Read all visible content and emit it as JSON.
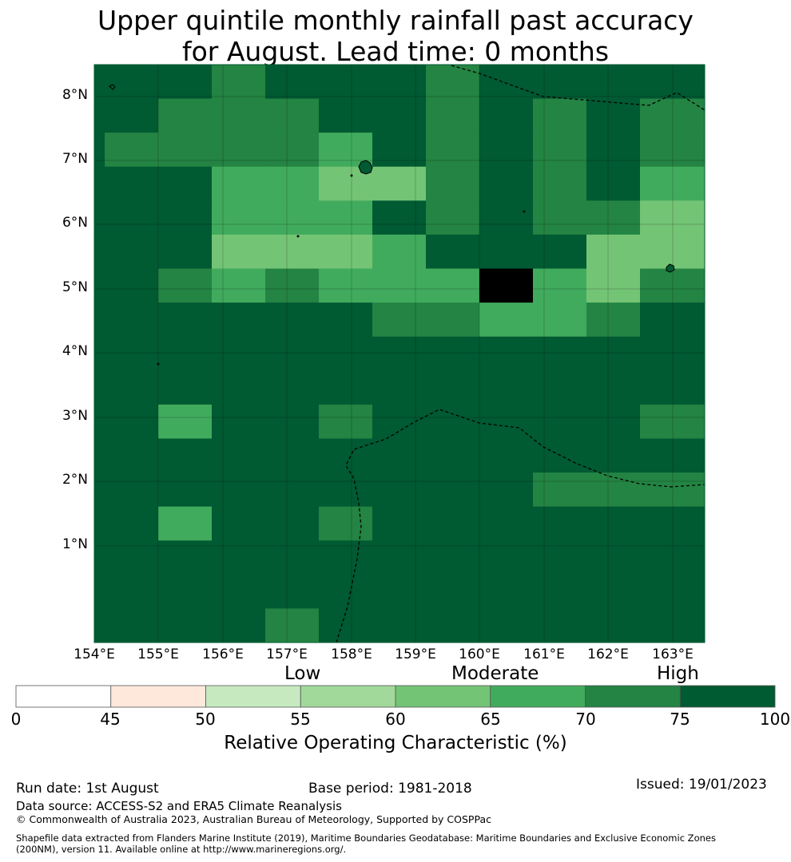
{
  "title": {
    "line1": "Upper quintile monthly rainfall past accuracy",
    "line2": "for August. Lead time: 0 months"
  },
  "map": {
    "lon_labels": [
      "154°E",
      "155°E",
      "156°E",
      "157°E",
      "158°E",
      "159°E",
      "160°E",
      "161°E",
      "162°E",
      "163°E"
    ],
    "lat_labels": [
      "8°N",
      "7°N",
      "6°N",
      "5°N",
      "4°N",
      "3°N",
      "2°N",
      "1°N"
    ],
    "grid_colors": [
      "#005a32",
      "#238443",
      "#41ab5d",
      "#74c476"
    ],
    "grid_rows": [
      "000100010000",
      "001110010101",
      "011112010101",
      "000223310102",
      "000222010113",
      "000333200033",
      "001212224231",
      "000000112210",
      "000000000000",
      "000000000000",
      "002001000001",
      "000000000000",
      "000000000111",
      "002001000000",
      "000000000000",
      "000000000000",
      "000010000000"
    ]
  },
  "legend": {
    "categories": {
      "low": "Low",
      "moderate": "Moderate",
      "high": "High"
    },
    "ticks": [
      "0",
      "45",
      "50",
      "55",
      "60",
      "65",
      "70",
      "75",
      "100"
    ],
    "colors": [
      "#ffffff",
      "#fee8dc",
      "#c7e9c0",
      "#a1d99b",
      "#74c476",
      "#41ab5d",
      "#238443",
      "#005a32"
    ],
    "label": "Relative Operating Characteristic (%)"
  },
  "footer": {
    "run_date": "Run date: 1st August",
    "base_period": "Base period: 1981-2018",
    "issued": "Issued: 19/01/2023",
    "data_source": "Data source: ACCESS-S2 and ERA5 Climate Reanalysis",
    "copyright": "© Commonwealth of Australia 2023, Australian Bureau of Meteorology, Supported by COSPPac",
    "shapefile1": "Shapefile data extracted from Flanders Marine Institute (2019), Maritime Boundaries Geodatabase: Maritime Boundaries and Exclusive Economic Zones",
    "shapefile2": "(200NM), version 11. Available online at http://www.marineregions.org/."
  }
}
